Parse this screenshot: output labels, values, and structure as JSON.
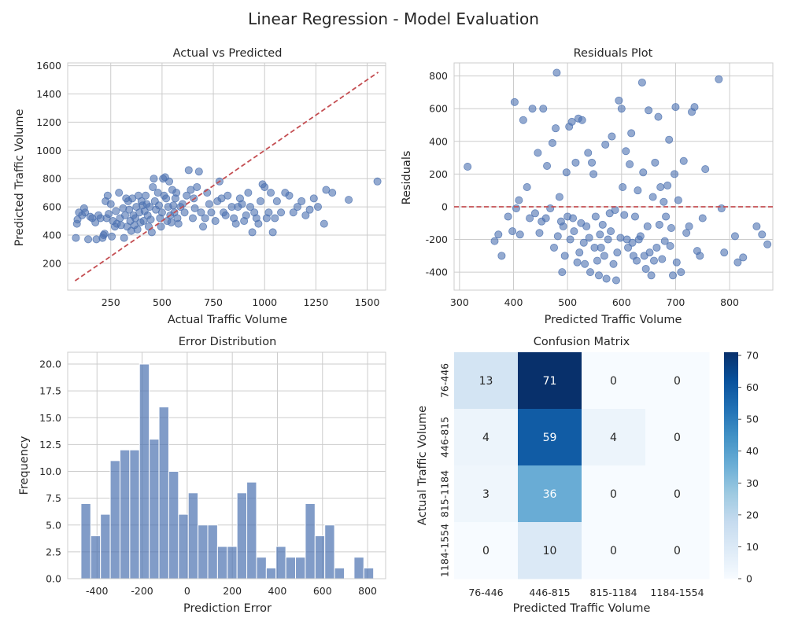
{
  "figure": {
    "title": "Linear Regression - Model Evaluation"
  },
  "colors": {
    "point": "#4c72b0",
    "bar": "#4c72b0",
    "refline": "#c44e52"
  },
  "chart_data": [
    {
      "id": "actual_vs_predicted",
      "type": "scatter",
      "title": "Actual vs Predicted",
      "xlabel": "Actual Traffic Volume",
      "ylabel": "Predicted Traffic Volume",
      "xlim": [
        40,
        1590
      ],
      "ylim": [
        10,
        1620
      ],
      "xticks": [
        250,
        500,
        750,
        1000,
        1250,
        1500
      ],
      "yticks": [
        200,
        400,
        600,
        800,
        1000,
        1200,
        1400,
        1600
      ],
      "reference_line": [
        [
          76,
          76
        ],
        [
          1554,
          1554
        ]
      ],
      "points": [
        [
          80,
          380
        ],
        [
          85,
          480
        ],
        [
          88,
          510
        ],
        [
          95,
          560
        ],
        [
          110,
          540
        ],
        [
          120,
          590
        ],
        [
          125,
          560
        ],
        [
          140,
          370
        ],
        [
          150,
          530
        ],
        [
          160,
          520
        ],
        [
          175,
          490
        ],
        [
          180,
          370
        ],
        [
          190,
          540
        ],
        [
          200,
          520
        ],
        [
          210,
          380
        ],
        [
          215,
          400
        ],
        [
          220,
          410
        ],
        [
          225,
          640
        ],
        [
          230,
          520
        ],
        [
          235,
          680
        ],
        [
          240,
          550
        ],
        [
          250,
          620
        ],
        [
          255,
          390
        ],
        [
          260,
          500
        ],
        [
          270,
          460
        ],
        [
          275,
          570
        ],
        [
          280,
          480
        ],
        [
          290,
          700
        ],
        [
          295,
          520
        ],
        [
          300,
          470
        ],
        [
          310,
          590
        ],
        [
          315,
          380
        ],
        [
          320,
          540
        ],
        [
          325,
          660
        ],
        [
          330,
          460
        ],
        [
          335,
          640
        ],
        [
          340,
          580
        ],
        [
          345,
          500
        ],
        [
          350,
          430
        ],
        [
          355,
          660
        ],
        [
          360,
          540
        ],
        [
          365,
          470
        ],
        [
          370,
          520
        ],
        [
          375,
          600
        ],
        [
          380,
          440
        ],
        [
          385,
          680
        ],
        [
          390,
          560
        ],
        [
          395,
          490
        ],
        [
          400,
          640
        ],
        [
          405,
          610
        ],
        [
          410,
          500
        ],
        [
          415,
          570
        ],
        [
          420,
          680
        ],
        [
          425,
          620
        ],
        [
          430,
          540
        ],
        [
          435,
          460
        ],
        [
          440,
          600
        ],
        [
          445,
          510
        ],
        [
          450,
          420
        ],
        [
          455,
          740
        ],
        [
          460,
          800
        ],
        [
          465,
          640
        ],
        [
          470,
          580
        ],
        [
          480,
          700
        ],
        [
          485,
          610
        ],
        [
          490,
          520
        ],
        [
          495,
          460
        ],
        [
          500,
          560
        ],
        [
          505,
          800
        ],
        [
          510,
          680
        ],
        [
          515,
          810
        ],
        [
          520,
          660
        ],
        [
          525,
          500
        ],
        [
          530,
          600
        ],
        [
          535,
          780
        ],
        [
          540,
          540
        ],
        [
          545,
          490
        ],
        [
          550,
          720
        ],
        [
          555,
          610
        ],
        [
          560,
          560
        ],
        [
          565,
          660
        ],
        [
          570,
          700
        ],
        [
          575,
          520
        ],
        [
          580,
          480
        ],
        [
          590,
          600
        ],
        [
          600,
          620
        ],
        [
          610,
          560
        ],
        [
          620,
          680
        ],
        [
          630,
          860
        ],
        [
          640,
          720
        ],
        [
          650,
          520
        ],
        [
          655,
          660
        ],
        [
          660,
          590
        ],
        [
          670,
          740
        ],
        [
          680,
          850
        ],
        [
          690,
          560
        ],
        [
          700,
          460
        ],
        [
          710,
          520
        ],
        [
          720,
          700
        ],
        [
          730,
          620
        ],
        [
          740,
          560
        ],
        [
          760,
          500
        ],
        [
          770,
          640
        ],
        [
          780,
          780
        ],
        [
          790,
          660
        ],
        [
          800,
          560
        ],
        [
          810,
          540
        ],
        [
          820,
          680
        ],
        [
          840,
          600
        ],
        [
          850,
          520
        ],
        [
          860,
          480
        ],
        [
          870,
          600
        ],
        [
          880,
          660
        ],
        [
          890,
          620
        ],
        [
          900,
          500
        ],
        [
          910,
          540
        ],
        [
          920,
          700
        ],
        [
          930,
          600
        ],
        [
          940,
          420
        ],
        [
          950,
          560
        ],
        [
          960,
          520
        ],
        [
          970,
          480
        ],
        [
          980,
          640
        ],
        [
          990,
          760
        ],
        [
          1000,
          740
        ],
        [
          1010,
          520
        ],
        [
          1020,
          560
        ],
        [
          1030,
          700
        ],
        [
          1040,
          420
        ],
        [
          1050,
          520
        ],
        [
          1060,
          640
        ],
        [
          1080,
          560
        ],
        [
          1100,
          700
        ],
        [
          1120,
          680
        ],
        [
          1140,
          560
        ],
        [
          1160,
          600
        ],
        [
          1180,
          640
        ],
        [
          1200,
          540
        ],
        [
          1220,
          580
        ],
        [
          1240,
          660
        ],
        [
          1260,
          600
        ],
        [
          1290,
          480
        ],
        [
          1300,
          720
        ],
        [
          1330,
          700
        ],
        [
          1410,
          650
        ],
        [
          1550,
          780
        ]
      ]
    },
    {
      "id": "residuals",
      "type": "scatter",
      "title": "Residuals Plot",
      "xlabel": "Predicted Traffic Volume",
      "ylabel": "Residuals",
      "xlim": [
        290,
        880
      ],
      "ylim": [
        -510,
        880
      ],
      "xticks": [
        300,
        400,
        500,
        600,
        700,
        800
      ],
      "yticks": [
        -400,
        -200,
        0,
        200,
        400,
        600,
        800
      ],
      "reference_line_y": 0,
      "points": [
        [
          315,
          245
        ],
        [
          365,
          -210
        ],
        [
          372,
          -170
        ],
        [
          378,
          -300
        ],
        [
          390,
          -60
        ],
        [
          398,
          -150
        ],
        [
          402,
          640
        ],
        [
          405,
          -10
        ],
        [
          410,
          40
        ],
        [
          412,
          -170
        ],
        [
          418,
          530
        ],
        [
          425,
          120
        ],
        [
          430,
          -70
        ],
        [
          435,
          600
        ],
        [
          440,
          -40
        ],
        [
          445,
          330
        ],
        [
          448,
          -160
        ],
        [
          452,
          -90
        ],
        [
          455,
          600
        ],
        [
          460,
          -70
        ],
        [
          462,
          250
        ],
        [
          468,
          -10
        ],
        [
          472,
          390
        ],
        [
          475,
          -250
        ],
        [
          478,
          480
        ],
        [
          480,
          820
        ],
        [
          482,
          -180
        ],
        [
          485,
          60
        ],
        [
          488,
          -90
        ],
        [
          490,
          -400
        ],
        [
          492,
          -120
        ],
        [
          495,
          -300
        ],
        [
          498,
          210
        ],
        [
          500,
          -60
        ],
        [
          503,
          490
        ],
        [
          505,
          -200
        ],
        [
          508,
          520
        ],
        [
          510,
          -70
        ],
        [
          512,
          -150
        ],
        [
          515,
          270
        ],
        [
          518,
          -340
        ],
        [
          520,
          540
        ],
        [
          522,
          -280
        ],
        [
          525,
          -100
        ],
        [
          527,
          530
        ],
        [
          530,
          -220
        ],
        [
          532,
          -350
        ],
        [
          535,
          -120
        ],
        [
          538,
          330
        ],
        [
          540,
          -190
        ],
        [
          542,
          -400
        ],
        [
          545,
          270
        ],
        [
          548,
          200
        ],
        [
          550,
          -250
        ],
        [
          552,
          -60
        ],
        [
          555,
          -330
        ],
        [
          558,
          -420
        ],
        [
          560,
          -170
        ],
        [
          562,
          -250
        ],
        [
          565,
          -110
        ],
        [
          568,
          -300
        ],
        [
          570,
          380
        ],
        [
          572,
          -440
        ],
        [
          575,
          -200
        ],
        [
          578,
          -40
        ],
        [
          580,
          -150
        ],
        [
          582,
          430
        ],
        [
          585,
          -350
        ],
        [
          588,
          -20
        ],
        [
          590,
          -450
        ],
        [
          592,
          -280
        ],
        [
          595,
          650
        ],
        [
          598,
          -190
        ],
        [
          600,
          600
        ],
        [
          602,
          120
        ],
        [
          605,
          -50
        ],
        [
          608,
          340
        ],
        [
          610,
          -200
        ],
        [
          612,
          -250
        ],
        [
          615,
          260
        ],
        [
          618,
          450
        ],
        [
          620,
          -220
        ],
        [
          622,
          -300
        ],
        [
          625,
          -60
        ],
        [
          628,
          -330
        ],
        [
          630,
          100
        ],
        [
          632,
          -200
        ],
        [
          635,
          -180
        ],
        [
          638,
          760
        ],
        [
          640,
          210
        ],
        [
          642,
          -300
        ],
        [
          645,
          -380
        ],
        [
          648,
          -120
        ],
        [
          650,
          590
        ],
        [
          652,
          -280
        ],
        [
          655,
          -420
        ],
        [
          658,
          60
        ],
        [
          660,
          -330
        ],
        [
          662,
          270
        ],
        [
          665,
          -250
        ],
        [
          668,
          550
        ],
        [
          670,
          -110
        ],
        [
          672,
          120
        ],
        [
          675,
          -320
        ],
        [
          678,
          30
        ],
        [
          680,
          -210
        ],
        [
          682,
          -60
        ],
        [
          685,
          130
        ],
        [
          688,
          410
        ],
        [
          690,
          -240
        ],
        [
          692,
          -130
        ],
        [
          695,
          -420
        ],
        [
          698,
          200
        ],
        [
          700,
          610
        ],
        [
          702,
          -340
        ],
        [
          705,
          40
        ],
        [
          710,
          -400
        ],
        [
          715,
          280
        ],
        [
          720,
          -160
        ],
        [
          725,
          -120
        ],
        [
          730,
          580
        ],
        [
          735,
          610
        ],
        [
          740,
          -270
        ],
        [
          745,
          -300
        ],
        [
          750,
          -70
        ],
        [
          755,
          230
        ],
        [
          780,
          780
        ],
        [
          785,
          -10
        ],
        [
          790,
          -280
        ],
        [
          810,
          -180
        ],
        [
          815,
          -340
        ],
        [
          825,
          -310
        ],
        [
          850,
          -120
        ],
        [
          860,
          -170
        ],
        [
          870,
          -230
        ]
      ]
    },
    {
      "id": "error_distribution",
      "type": "bar",
      "title": "Error Distribution",
      "xlabel": "Prediction Error",
      "ylabel": "Frequency",
      "xlim": [
        -530,
        880
      ],
      "ylim": [
        0,
        21.1
      ],
      "xticks": [
        -400,
        -200,
        0,
        200,
        400,
        600,
        800
      ],
      "yticks": [
        0.0,
        2.5,
        5.0,
        7.5,
        10.0,
        12.5,
        15.0,
        17.5,
        20.0
      ],
      "ytick_labels": [
        "0.0",
        "2.5",
        "5.0",
        "7.5",
        "10.0",
        "12.5",
        "15.0",
        "17.5",
        "20.0"
      ],
      "bin_start": -471,
      "bin_width": 43.25,
      "values": [
        7,
        4,
        6,
        11,
        12,
        12,
        20,
        13,
        16,
        10,
        6,
        8,
        5,
        5,
        3,
        3,
        8,
        9,
        2,
        1,
        3,
        2,
        2,
        7,
        4,
        5,
        1,
        0,
        2,
        1
      ]
    },
    {
      "id": "confusion_matrix",
      "type": "heatmap",
      "title": "Confusion Matrix",
      "xlabel": "Predicted Traffic Volume",
      "ylabel": "Actual Traffic Volume",
      "x_categories": [
        "76-446",
        "446-815",
        "815-1184",
        "1184-1554"
      ],
      "y_categories": [
        "76-446",
        "446-815",
        "815-1184",
        "1184-1554"
      ],
      "matrix": [
        [
          13,
          71,
          0,
          0
        ],
        [
          4,
          59,
          4,
          0
        ],
        [
          3,
          36,
          0,
          0
        ],
        [
          0,
          10,
          0,
          0
        ]
      ],
      "colormap": "Blues",
      "vmin": 0,
      "vmax": 71,
      "colorbar_ticks": [
        0,
        10,
        20,
        30,
        40,
        50,
        60,
        70
      ]
    }
  ]
}
